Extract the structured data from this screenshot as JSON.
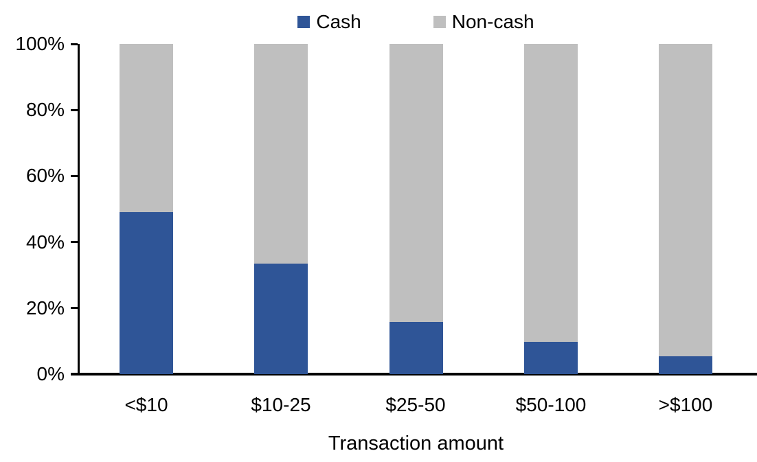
{
  "chart_data": {
    "type": "bar",
    "variant": "stacked-100-percent",
    "title": "",
    "xlabel": "Transaction amount",
    "ylabel": "",
    "categories": [
      "<$10",
      "$10-25",
      "$25-50",
      "$50-100",
      ">$100"
    ],
    "series": [
      {
        "name": "Cash",
        "color": "#2F5597",
        "values": [
          49,
          33.5,
          15.7,
          9.7,
          5.5
        ]
      },
      {
        "name": "Non-cash",
        "color": "#BFBFBF",
        "values": [
          51,
          66.5,
          84.3,
          90.3,
          94.5
        ]
      }
    ],
    "ylim": [
      0,
      100
    ],
    "ytick_labels_top_down": [
      "100%",
      "80%",
      "60%",
      "40%",
      "20%",
      "0%"
    ],
    "legend_position": "top-center",
    "grid": false,
    "axis_color": "#000000",
    "background": "#FFFFFF"
  }
}
